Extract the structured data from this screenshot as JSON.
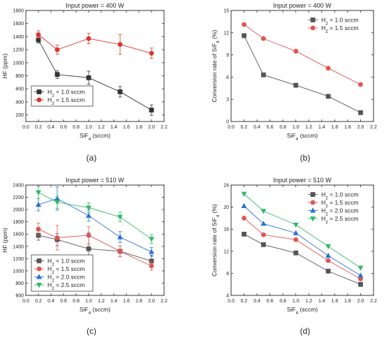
{
  "panels": [
    {
      "panel_label": "(a)",
      "chart_data": {
        "type": "line",
        "title": "Input power = 400 W",
        "xlabel": "SiF",
        "xlabel_sub": "4",
        "xlabel_suffix": " (sccm)",
        "ylabel": "HF (ppm)",
        "ylabel_sub": "",
        "ylabel_suffix": "",
        "xlim": [
          0.0,
          2.2
        ],
        "ylim": [
          100,
          1800
        ],
        "xticks": [
          "0.0",
          "0.2",
          "0.4",
          "0.6",
          "0.8",
          "1.0",
          "1.2",
          "1.4",
          "1.6",
          "1.8",
          "2.0",
          "2.2"
        ],
        "yticks": [
          "200",
          "400",
          "600",
          "800",
          "1000",
          "1200",
          "1400",
          "1600",
          "1800"
        ],
        "legend_position": "bottom-left",
        "series": [
          {
            "name_prefix": "H",
            "name_sub": "2",
            "name_suffix": " = 1.0 sccm",
            "color": "#333333",
            "marker": "square",
            "x": [
              0.2,
              0.5,
              1.0,
              1.5,
              2.0
            ],
            "y": [
              1350,
              820,
              770,
              555,
              275
            ],
            "err": [
              50,
              60,
              100,
              80,
              80
            ]
          },
          {
            "name_prefix": "H",
            "name_sub": "2",
            "name_suffix": " = 1.5 sccm",
            "color": "#e0312b",
            "marker": "circle",
            "x": [
              0.2,
              0.5,
              1.0,
              1.5,
              2.0
            ],
            "y": [
              1430,
              1200,
              1370,
              1280,
              1145
            ],
            "err": [
              60,
              70,
              80,
              150,
              80
            ]
          }
        ]
      }
    },
    {
      "panel_label": "(b)",
      "chart_data": {
        "type": "line",
        "title": "Input power = 400 W",
        "xlabel": "SiF",
        "xlabel_sub": "4",
        "xlabel_suffix": " (sccm)",
        "ylabel": "Conversion rate of SiF",
        "ylabel_sub": "4",
        "ylabel_suffix": " (%)",
        "xlim": [
          0.0,
          2.2
        ],
        "ylim": [
          0,
          15
        ],
        "xticks": [
          "0.0",
          "0.2",
          "0.4",
          "0.6",
          "0.8",
          "1.0",
          "1.2",
          "1.4",
          "1.6",
          "1.8",
          "2.0",
          "2.2"
        ],
        "yticks": [
          "0",
          "3",
          "6",
          "9",
          "12",
          "15"
        ],
        "legend_position": "top-right",
        "series": [
          {
            "name_prefix": "H",
            "name_sub": "2",
            "name_suffix": " = 1.0 sccm",
            "color": "#555555",
            "marker": "square",
            "x": [
              0.2,
              0.5,
              1.0,
              1.5,
              2.0
            ],
            "y": [
              11.6,
              6.3,
              4.9,
              3.4,
              1.2
            ],
            "err": []
          },
          {
            "name_prefix": "H",
            "name_sub": "2",
            "name_suffix": " = 1.5 sccm",
            "color": "#e05550",
            "marker": "circle",
            "x": [
              0.2,
              0.5,
              1.0,
              1.5,
              2.0
            ],
            "y": [
              13.1,
              11.2,
              9.5,
              7.2,
              5.0
            ],
            "err": []
          }
        ]
      }
    },
    {
      "panel_label": "(c)",
      "chart_data": {
        "type": "line",
        "title": "Input power = 510 W",
        "xlabel": "SiF",
        "xlabel_sub": "4",
        "xlabel_suffix": " (sccm)",
        "ylabel": "HF (ppm)",
        "ylabel_sub": "",
        "ylabel_suffix": "",
        "xlim": [
          0.0,
          2.2
        ],
        "ylim": [
          600,
          2400
        ],
        "xticks": [
          "0.0",
          "0.2",
          "0.4",
          "0.6",
          "0.8",
          "1.0",
          "1.2",
          "1.4",
          "1.6",
          "1.8",
          "2.0",
          "2.2"
        ],
        "yticks": [
          "600",
          "800",
          "1000",
          "1200",
          "1400",
          "1600",
          "1800",
          "2000",
          "2200",
          "2400"
        ],
        "legend_position": "bottom-left",
        "series": [
          {
            "name_prefix": "H",
            "name_sub": "2",
            "name_suffix": " = 1.0 sccm",
            "color": "#555555",
            "marker": "square",
            "x": [
              0.2,
              0.5,
              1.0,
              1.5,
              2.0
            ],
            "y": [
              1580,
              1510,
              1360,
              1320,
              1160
            ],
            "err": [
              80,
              100,
              260,
              90,
              90
            ]
          },
          {
            "name_prefix": "H",
            "name_sub": "2",
            "name_suffix": " = 1.5 sccm",
            "color": "#e05550",
            "marker": "circle",
            "x": [
              0.2,
              0.5,
              1.0,
              1.5,
              2.0
            ],
            "y": [
              1680,
              1540,
              1580,
              1320,
              1080
            ],
            "err": [
              100,
              200,
              140,
              90,
              70
            ]
          },
          {
            "name_prefix": "H",
            "name_sub": "2",
            "name_suffix": " = 2.0 sccm",
            "color": "#2b6fd6",
            "marker": "triangle-up",
            "x": [
              0.2,
              0.5,
              1.0,
              1.5,
              2.0
            ],
            "y": [
              2080,
              2180,
              1900,
              1550,
              1310
            ],
            "err": [
              100,
              190,
              90,
              90,
              70
            ]
          },
          {
            "name_prefix": "H",
            "name_sub": "2",
            "name_suffix": " = 2.5 sccm",
            "color": "#2fb86a",
            "marker": "triangle-down",
            "x": [
              0.2,
              0.5,
              1.0,
              1.5,
              2.0
            ],
            "y": [
              2280,
              2120,
              2030,
              1880,
              1520
            ],
            "err": [
              100,
              100,
              80,
              80,
              70
            ]
          }
        ]
      }
    },
    {
      "panel_label": "(d)",
      "chart_data": {
        "type": "line",
        "title": "Input power = 510 W",
        "xlabel": "SiF",
        "xlabel_sub": "4",
        "xlabel_suffix": " (sccm)",
        "ylabel": "Conversion rate of SiF",
        "ylabel_sub": "4",
        "ylabel_suffix": " (%)",
        "xlim": [
          0.0,
          2.2
        ],
        "ylim": [
          4,
          24
        ],
        "xticks": [
          "0.0",
          "0.2",
          "0.4",
          "0.6",
          "0.8",
          "1.0",
          "1.2",
          "1.4",
          "1.6",
          "1.8",
          "2.0",
          "2.2"
        ],
        "yticks": [
          "4",
          "8",
          "12",
          "16",
          "20",
          "24"
        ],
        "legend_position": "top-right",
        "series": [
          {
            "name_prefix": "H",
            "name_sub": "2",
            "name_suffix": " = 1.0 sccm",
            "color": "#555555",
            "marker": "square",
            "x": [
              0.2,
              0.5,
              1.0,
              1.5,
              2.0
            ],
            "y": [
              15.1,
              13.2,
              11.7,
              8.4,
              6.0
            ],
            "err": []
          },
          {
            "name_prefix": "H",
            "name_sub": "2",
            "name_suffix": " = 1.5 sccm",
            "color": "#e05550",
            "marker": "circle",
            "x": [
              0.2,
              0.5,
              1.0,
              1.5,
              2.0
            ],
            "y": [
              18.0,
              15.0,
              14.1,
              10.3,
              7.0
            ],
            "err": []
          },
          {
            "name_prefix": "H",
            "name_sub": "2",
            "name_suffix": " = 2.0 sccm",
            "color": "#2b6fd6",
            "marker": "triangle-up",
            "x": [
              0.2,
              0.5,
              1.0,
              1.5,
              2.0
            ],
            "y": [
              20.2,
              17.0,
              15.3,
              11.2,
              7.6
            ],
            "err": []
          },
          {
            "name_prefix": "H",
            "name_sub": "2",
            "name_suffix": " = 2.5 sccm",
            "color": "#2fb86a",
            "marker": "triangle-down",
            "x": [
              0.2,
              0.5,
              1.0,
              1.5,
              2.0
            ],
            "y": [
              22.4,
              19.3,
              16.8,
              12.9,
              9.0
            ],
            "err": []
          }
        ]
      }
    }
  ]
}
